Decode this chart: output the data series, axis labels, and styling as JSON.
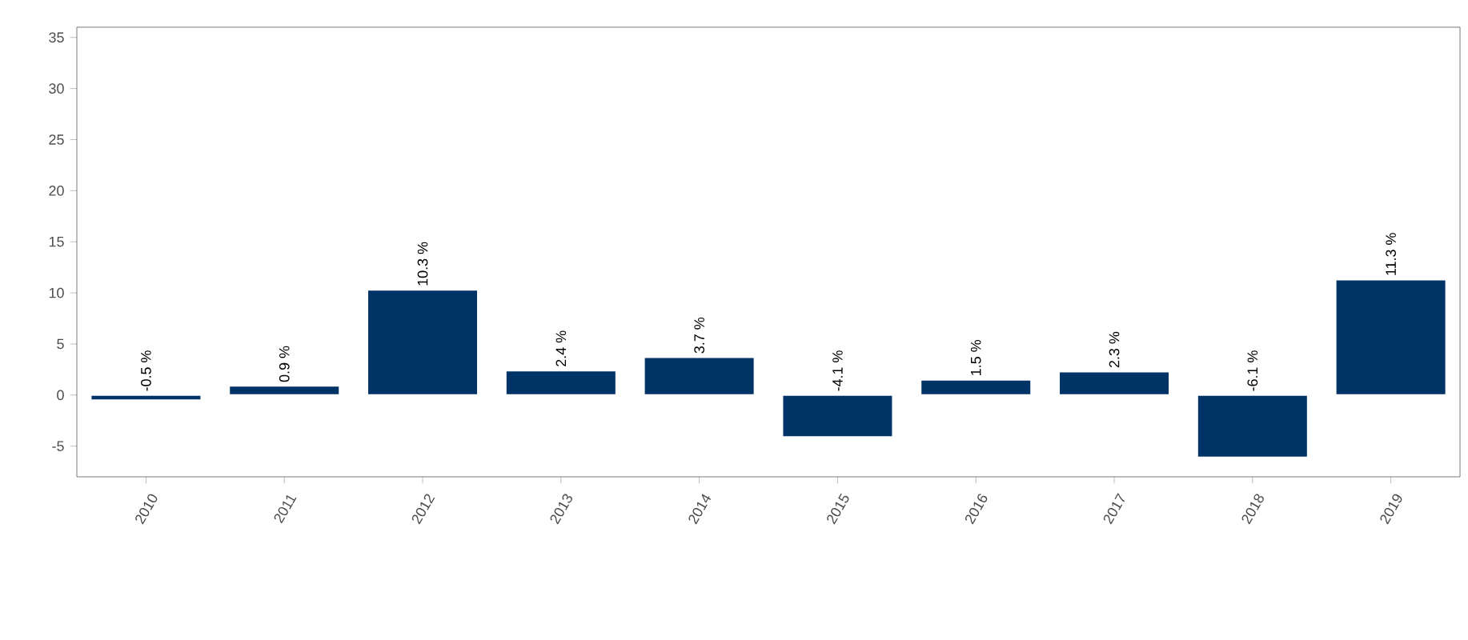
{
  "chart_data": {
    "type": "bar",
    "categories": [
      "2010",
      "2011",
      "2012",
      "2013",
      "2014",
      "2015",
      "2016",
      "2017",
      "2018",
      "2019"
    ],
    "values": [
      -0.5,
      0.9,
      10.3,
      2.4,
      3.7,
      -4.1,
      1.5,
      2.3,
      -6.1,
      11.3
    ],
    "value_labels": [
      "-0.5 %",
      "0.9 %",
      "10.3 %",
      "2.4 %",
      "3.7 %",
      "-4.1 %",
      "1.5 %",
      "2.3 %",
      "-6.1 %",
      "11.3 %"
    ],
    "color": "#003366",
    "ylim": [
      -8,
      36
    ],
    "yticks": [
      -5,
      0,
      5,
      10,
      15,
      20,
      25,
      30,
      35
    ],
    "grid": false
  }
}
